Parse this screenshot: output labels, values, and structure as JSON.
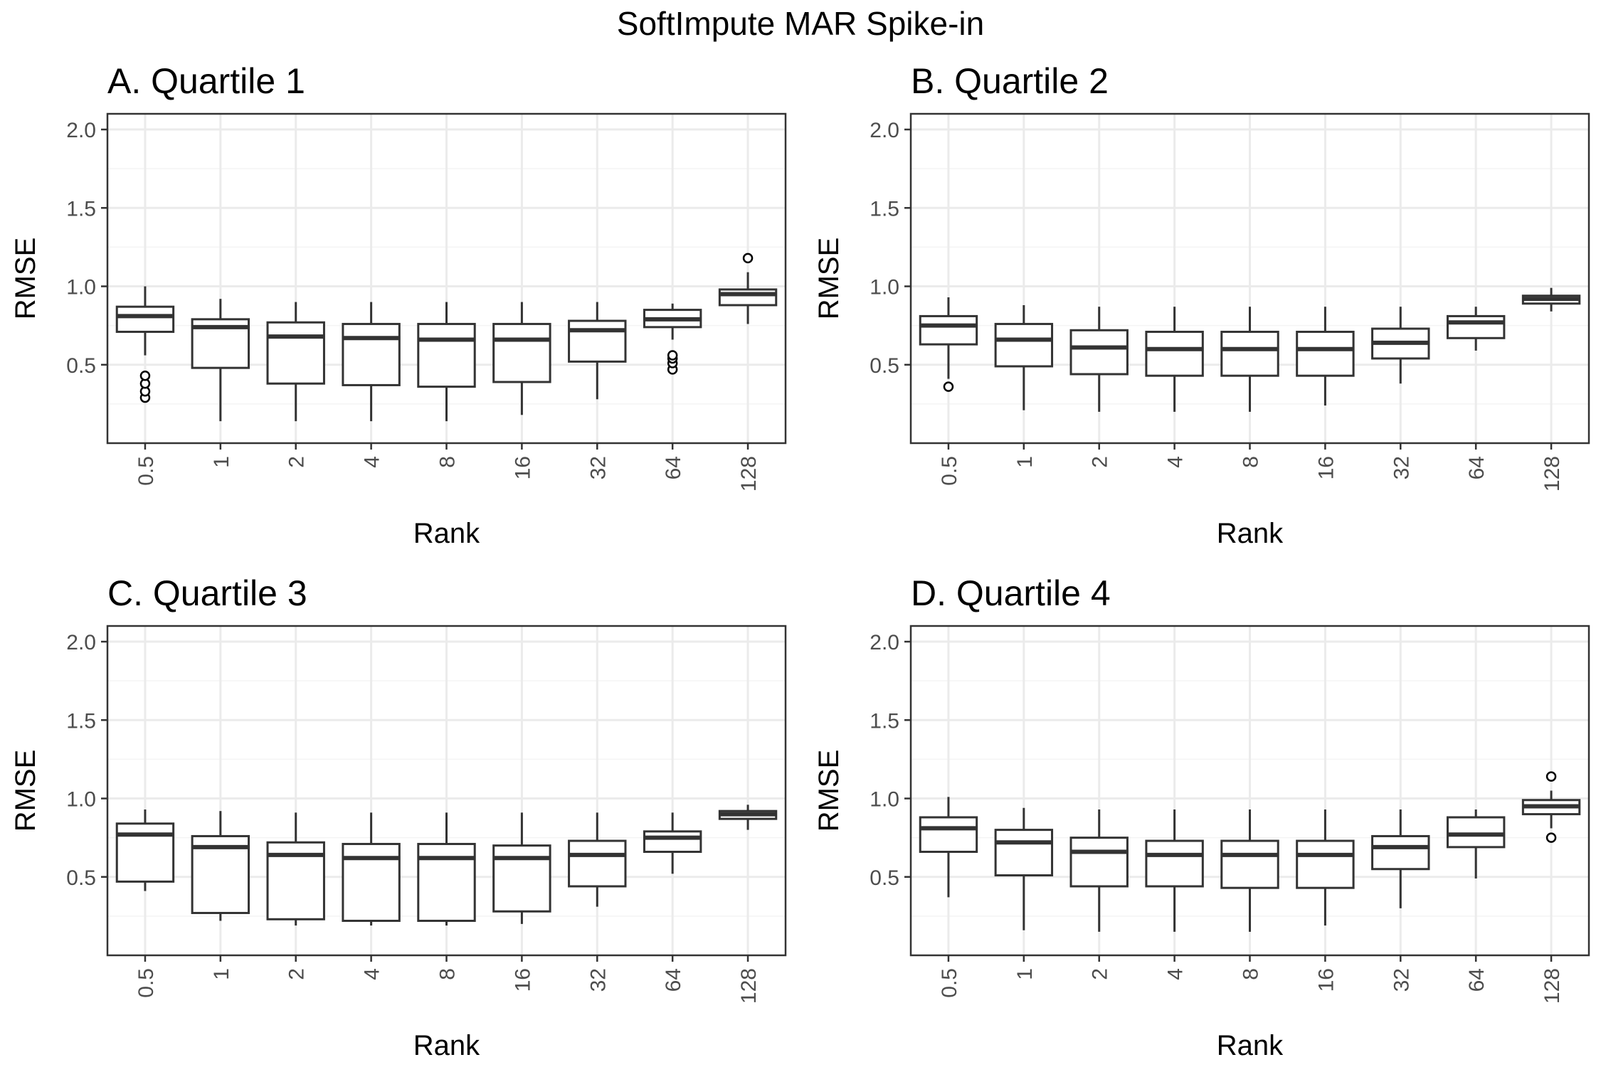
{
  "title": "SoftImpute MAR Spike-in",
  "chart_data": [
    {
      "type": "box",
      "title": "A. Quartile 1",
      "xlabel": "Rank",
      "ylabel": "RMSE",
      "ylim": [
        0,
        2.1
      ],
      "yticks": [
        "0.5",
        "1.0",
        "1.5",
        "2.0"
      ],
      "grid": true,
      "categories": [
        "0.5",
        "1",
        "2",
        "4",
        "8",
        "16",
        "32",
        "64",
        "128"
      ],
      "boxes": [
        {
          "min": 0.56,
          "q1": 0.71,
          "median": 0.81,
          "q3": 0.87,
          "max": 1.0,
          "outliers": [
            0.29,
            0.33,
            0.38,
            0.43
          ]
        },
        {
          "min": 0.14,
          "q1": 0.48,
          "median": 0.74,
          "q3": 0.79,
          "max": 0.92,
          "outliers": []
        },
        {
          "min": 0.14,
          "q1": 0.38,
          "median": 0.68,
          "q3": 0.77,
          "max": 0.9,
          "outliers": []
        },
        {
          "min": 0.14,
          "q1": 0.37,
          "median": 0.67,
          "q3": 0.76,
          "max": 0.9,
          "outliers": []
        },
        {
          "min": 0.14,
          "q1": 0.36,
          "median": 0.66,
          "q3": 0.76,
          "max": 0.9,
          "outliers": []
        },
        {
          "min": 0.18,
          "q1": 0.39,
          "median": 0.66,
          "q3": 0.76,
          "max": 0.9,
          "outliers": []
        },
        {
          "min": 0.28,
          "q1": 0.52,
          "median": 0.72,
          "q3": 0.78,
          "max": 0.9,
          "outliers": []
        },
        {
          "min": 0.66,
          "q1": 0.74,
          "median": 0.79,
          "q3": 0.85,
          "max": 0.89,
          "outliers": [
            0.47,
            0.51,
            0.54,
            0.56
          ]
        },
        {
          "min": 0.76,
          "q1": 0.88,
          "median": 0.95,
          "q3": 0.98,
          "max": 1.09,
          "outliers": [
            1.18
          ]
        }
      ]
    },
    {
      "type": "box",
      "title": "B. Quartile 2",
      "xlabel": "Rank",
      "ylabel": "RMSE",
      "ylim": [
        0,
        2.1
      ],
      "yticks": [
        "0.5",
        "1.0",
        "1.5",
        "2.0"
      ],
      "grid": true,
      "categories": [
        "0.5",
        "1",
        "2",
        "4",
        "8",
        "16",
        "32",
        "64",
        "128"
      ],
      "boxes": [
        {
          "min": 0.41,
          "q1": 0.63,
          "median": 0.75,
          "q3": 0.81,
          "max": 0.93,
          "outliers": [
            0.36
          ]
        },
        {
          "min": 0.21,
          "q1": 0.49,
          "median": 0.66,
          "q3": 0.76,
          "max": 0.88,
          "outliers": []
        },
        {
          "min": 0.2,
          "q1": 0.44,
          "median": 0.61,
          "q3": 0.72,
          "max": 0.87,
          "outliers": []
        },
        {
          "min": 0.2,
          "q1": 0.43,
          "median": 0.6,
          "q3": 0.71,
          "max": 0.87,
          "outliers": []
        },
        {
          "min": 0.2,
          "q1": 0.43,
          "median": 0.6,
          "q3": 0.71,
          "max": 0.87,
          "outliers": []
        },
        {
          "min": 0.24,
          "q1": 0.43,
          "median": 0.6,
          "q3": 0.71,
          "max": 0.87,
          "outliers": []
        },
        {
          "min": 0.38,
          "q1": 0.54,
          "median": 0.64,
          "q3": 0.73,
          "max": 0.87,
          "outliers": []
        },
        {
          "min": 0.59,
          "q1": 0.67,
          "median": 0.77,
          "q3": 0.81,
          "max": 0.87,
          "outliers": []
        },
        {
          "min": 0.84,
          "q1": 0.89,
          "median": 0.92,
          "q3": 0.94,
          "max": 0.99,
          "outliers": []
        }
      ]
    },
    {
      "type": "box",
      "title": "C. Quartile 3",
      "xlabel": "Rank",
      "ylabel": "RMSE",
      "ylim": [
        0,
        2.1
      ],
      "yticks": [
        "0.5",
        "1.0",
        "1.5",
        "2.0"
      ],
      "grid": true,
      "categories": [
        "0.5",
        "1",
        "2",
        "4",
        "8",
        "16",
        "32",
        "64",
        "128"
      ],
      "boxes": [
        {
          "min": 0.41,
          "q1": 0.47,
          "median": 0.77,
          "q3": 0.84,
          "max": 0.93,
          "outliers": []
        },
        {
          "min": 0.22,
          "q1": 0.27,
          "median": 0.69,
          "q3": 0.76,
          "max": 0.92,
          "outliers": []
        },
        {
          "min": 0.19,
          "q1": 0.23,
          "median": 0.64,
          "q3": 0.72,
          "max": 0.91,
          "outliers": []
        },
        {
          "min": 0.19,
          "q1": 0.22,
          "median": 0.62,
          "q3": 0.71,
          "max": 0.91,
          "outliers": []
        },
        {
          "min": 0.19,
          "q1": 0.22,
          "median": 0.62,
          "q3": 0.71,
          "max": 0.91,
          "outliers": []
        },
        {
          "min": 0.2,
          "q1": 0.28,
          "median": 0.62,
          "q3": 0.7,
          "max": 0.91,
          "outliers": []
        },
        {
          "min": 0.31,
          "q1": 0.44,
          "median": 0.64,
          "q3": 0.73,
          "max": 0.91,
          "outliers": []
        },
        {
          "min": 0.52,
          "q1": 0.66,
          "median": 0.75,
          "q3": 0.79,
          "max": 0.91,
          "outliers": []
        },
        {
          "min": 0.8,
          "q1": 0.87,
          "median": 0.9,
          "q3": 0.92,
          "max": 0.96,
          "outliers": []
        }
      ]
    },
    {
      "type": "box",
      "title": "D. Quartile 4",
      "xlabel": "Rank",
      "ylabel": "RMSE",
      "ylim": [
        0,
        2.1
      ],
      "yticks": [
        "0.5",
        "1.0",
        "1.5",
        "2.0"
      ],
      "grid": true,
      "categories": [
        "0.5",
        "1",
        "2",
        "4",
        "8",
        "16",
        "32",
        "64",
        "128"
      ],
      "boxes": [
        {
          "min": 0.37,
          "q1": 0.66,
          "median": 0.81,
          "q3": 0.88,
          "max": 1.01,
          "outliers": []
        },
        {
          "min": 0.16,
          "q1": 0.51,
          "median": 0.72,
          "q3": 0.8,
          "max": 0.94,
          "outliers": []
        },
        {
          "min": 0.15,
          "q1": 0.44,
          "median": 0.66,
          "q3": 0.75,
          "max": 0.93,
          "outliers": []
        },
        {
          "min": 0.15,
          "q1": 0.44,
          "median": 0.64,
          "q3": 0.73,
          "max": 0.93,
          "outliers": []
        },
        {
          "min": 0.15,
          "q1": 0.43,
          "median": 0.64,
          "q3": 0.73,
          "max": 0.93,
          "outliers": []
        },
        {
          "min": 0.19,
          "q1": 0.43,
          "median": 0.64,
          "q3": 0.73,
          "max": 0.93,
          "outliers": []
        },
        {
          "min": 0.3,
          "q1": 0.55,
          "median": 0.69,
          "q3": 0.76,
          "max": 0.93,
          "outliers": []
        },
        {
          "min": 0.49,
          "q1": 0.69,
          "median": 0.77,
          "q3": 0.88,
          "max": 0.93,
          "outliers": []
        },
        {
          "min": 0.81,
          "q1": 0.9,
          "median": 0.95,
          "q3": 0.99,
          "max": 1.05,
          "outliers": [
            0.75,
            1.14
          ]
        }
      ]
    }
  ]
}
